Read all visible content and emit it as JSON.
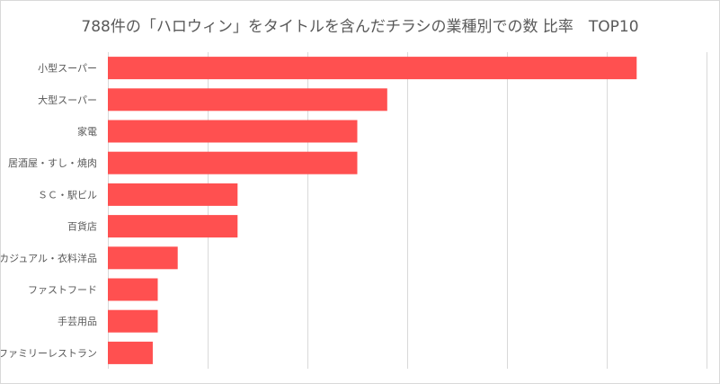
{
  "chart_data": {
    "type": "bar",
    "orientation": "horizontal",
    "title": "788件の「ハロウィン」をタイトルを含んだチラシの業種別での数 比率　TOP10",
    "categories": [
      "小型スーパー",
      "大型スーパー",
      "家電",
      "居酒屋・すし・焼肉",
      "ＳＣ・駅ビル",
      "百貨店",
      "カジュアル・衣料洋品",
      "ファストフード",
      "手芸用品",
      "ファミリーレストラン"
    ],
    "values": [
      53,
      28,
      25,
      25,
      13,
      13,
      7,
      5,
      5,
      4.5
    ],
    "xlim": [
      0,
      60
    ],
    "grid": true,
    "color": "#ff5050"
  }
}
